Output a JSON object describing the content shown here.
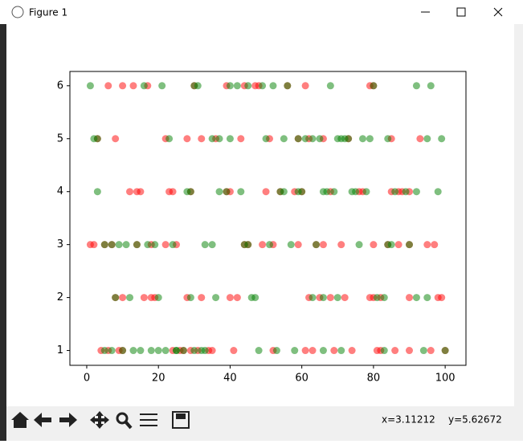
{
  "window": {
    "title": "Figure 1"
  },
  "status": {
    "x": "x=3.11212",
    "y": "y=5.62672"
  },
  "chart_data": {
    "type": "scatter",
    "xlim": [
      -4.7,
      105.8
    ],
    "ylim": [
      0.72,
      6.27
    ],
    "xticks": [
      0,
      20,
      40,
      60,
      80,
      100
    ],
    "yticks": [
      1,
      2,
      3,
      4,
      5,
      6
    ],
    "grid": false,
    "alpha": 0.5,
    "series": [
      {
        "color": "#ff0000",
        "x": [
          6,
          10,
          13,
          17,
          30,
          39,
          44,
          47,
          48,
          56,
          61,
          79,
          80,
          3,
          8,
          22,
          28,
          32,
          36,
          43,
          51,
          59,
          62,
          66,
          73,
          85,
          93,
          12,
          14,
          15,
          23,
          24,
          29,
          39,
          40,
          50,
          54,
          58,
          60,
          68,
          76,
          77,
          85,
          87,
          88,
          90,
          1,
          2,
          5,
          7,
          14,
          18,
          22,
          25,
          44,
          45,
          49,
          52,
          59,
          64,
          66,
          71,
          80,
          84,
          87,
          90,
          95,
          97,
          8,
          10,
          16,
          18,
          19,
          28,
          32,
          40,
          42,
          62,
          65,
          68,
          72,
          79,
          80,
          82,
          90,
          98,
          99,
          4,
          6,
          9,
          10,
          24,
          26,
          27,
          29,
          31,
          34,
          35,
          41,
          52,
          61,
          63,
          69,
          74,
          81,
          82,
          86,
          90,
          96,
          100
        ],
        "values": [
          6,
          6,
          6,
          6,
          6,
          6,
          6,
          6,
          6,
          6,
          6,
          6,
          6,
          5,
          5,
          5,
          5,
          5,
          5,
          5,
          5,
          5,
          5,
          5,
          5,
          5,
          5,
          4,
          4,
          4,
          4,
          4,
          4,
          4,
          4,
          4,
          4,
          4,
          4,
          4,
          4,
          4,
          4,
          4,
          4,
          4,
          3,
          3,
          3,
          3,
          3,
          3,
          3,
          3,
          3,
          3,
          3,
          3,
          3,
          3,
          3,
          3,
          3,
          3,
          3,
          3,
          3,
          3,
          2,
          2,
          2,
          2,
          2,
          2,
          2,
          2,
          2,
          2,
          2,
          2,
          2,
          2,
          2,
          2,
          2,
          2,
          2,
          1,
          1,
          1,
          1,
          1,
          1,
          1,
          1,
          1,
          1,
          1,
          1,
          1,
          1,
          1,
          1,
          1,
          1,
          1,
          1,
          1,
          1,
          1
        ]
      },
      {
        "color": "#008000",
        "x": [
          1,
          16,
          21,
          30,
          31,
          40,
          42,
          45,
          49,
          52,
          56,
          68,
          80,
          92,
          96,
          2,
          3,
          23,
          35,
          37,
          40,
          50,
          55,
          59,
          61,
          63,
          65,
          70,
          71,
          72,
          73,
          77,
          79,
          84,
          95,
          99,
          3,
          28,
          29,
          37,
          39,
          43,
          54,
          55,
          59,
          60,
          66,
          67,
          69,
          74,
          75,
          78,
          86,
          89,
          92,
          98,
          5,
          7,
          9,
          11,
          14,
          17,
          19,
          24,
          33,
          35,
          44,
          45,
          51,
          57,
          64,
          76,
          84,
          85,
          90,
          8,
          12,
          20,
          29,
          36,
          46,
          47,
          63,
          66,
          70,
          81,
          83,
          92,
          95,
          5,
          7,
          10,
          13,
          15,
          18,
          20,
          22,
          25,
          25,
          27,
          30,
          32,
          33,
          48,
          53,
          58,
          66,
          71,
          83,
          94,
          100
        ],
        "values": [
          6,
          6,
          6,
          6,
          6,
          6,
          6,
          6,
          6,
          6,
          6,
          6,
          6,
          6,
          6,
          5,
          5,
          5,
          5,
          5,
          5,
          5,
          5,
          5,
          5,
          5,
          5,
          5,
          5,
          5,
          5,
          5,
          5,
          5,
          5,
          5,
          4,
          4,
          4,
          4,
          4,
          4,
          4,
          4,
          4,
          4,
          4,
          4,
          4,
          4,
          4,
          4,
          4,
          4,
          4,
          4,
          3,
          3,
          3,
          3,
          3,
          3,
          3,
          3,
          3,
          3,
          3,
          3,
          3,
          3,
          3,
          3,
          3,
          3,
          3,
          2,
          2,
          2,
          2,
          2,
          2,
          2,
          2,
          2,
          2,
          2,
          2,
          2,
          2,
          1,
          1,
          1,
          1,
          1,
          1,
          1,
          1,
          1,
          1,
          1,
          1,
          1,
          1,
          1,
          1,
          1,
          1,
          1,
          1,
          1,
          1
        ]
      }
    ]
  }
}
